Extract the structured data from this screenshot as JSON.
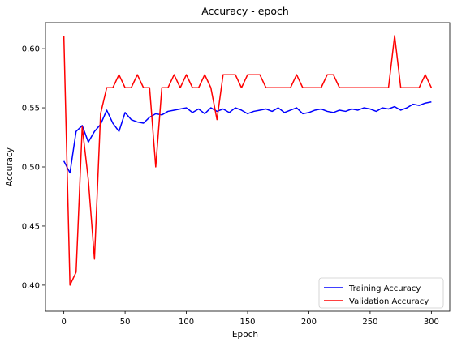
{
  "chart_data": {
    "type": "line",
    "title": "Accuracy - epoch",
    "xlabel": "Epoch",
    "ylabel": "Accuracy",
    "xlim": [
      -15,
      315
    ],
    "ylim": [
      0.378,
      0.622
    ],
    "x_ticks": [
      0,
      50,
      100,
      150,
      200,
      250,
      300
    ],
    "y_ticks": [
      0.4,
      0.45,
      0.5,
      0.55,
      0.6
    ],
    "grid": false,
    "legend": {
      "placement": "lower-right"
    },
    "series": [
      {
        "name": "Training Accuracy",
        "color": "#0000ff",
        "x_start": 0,
        "x_step": 5,
        "values": [
          0.505,
          0.495,
          0.53,
          0.535,
          0.521,
          0.53,
          0.536,
          0.548,
          0.537,
          0.53,
          0.546,
          0.54,
          0.538,
          0.537,
          0.542,
          0.545,
          0.544,
          0.547,
          0.548,
          0.549,
          0.55,
          0.546,
          0.549,
          0.545,
          0.55,
          0.547,
          0.549,
          0.546,
          0.55,
          0.548,
          0.545,
          0.547,
          0.548,
          0.549,
          0.547,
          0.55,
          0.546,
          0.548,
          0.55,
          0.545,
          0.546,
          0.548,
          0.549,
          0.547,
          0.546,
          0.548,
          0.547,
          0.549,
          0.548,
          0.55,
          0.549,
          0.547,
          0.55,
          0.549,
          0.551,
          0.548,
          0.55,
          0.553,
          0.552,
          0.554,
          0.555
        ]
      },
      {
        "name": "Validation Accuracy",
        "color": "#ff0000",
        "x_start": 0,
        "x_step": 5,
        "values": [
          0.611,
          0.4,
          0.411,
          0.534,
          0.489,
          0.422,
          0.545,
          0.567,
          0.567,
          0.578,
          0.567,
          0.567,
          0.578,
          0.567,
          0.567,
          0.5,
          0.567,
          0.567,
          0.578,
          0.567,
          0.578,
          0.567,
          0.567,
          0.578,
          0.567,
          0.54,
          0.578,
          0.578,
          0.578,
          0.567,
          0.578,
          0.578,
          0.578,
          0.567,
          0.567,
          0.567,
          0.567,
          0.567,
          0.578,
          0.567,
          0.567,
          0.567,
          0.567,
          0.578,
          0.578,
          0.567,
          0.567,
          0.567,
          0.567,
          0.567,
          0.567,
          0.567,
          0.567,
          0.567,
          0.611,
          0.567,
          0.567,
          0.567,
          0.567,
          0.578,
          0.567
        ]
      }
    ]
  }
}
